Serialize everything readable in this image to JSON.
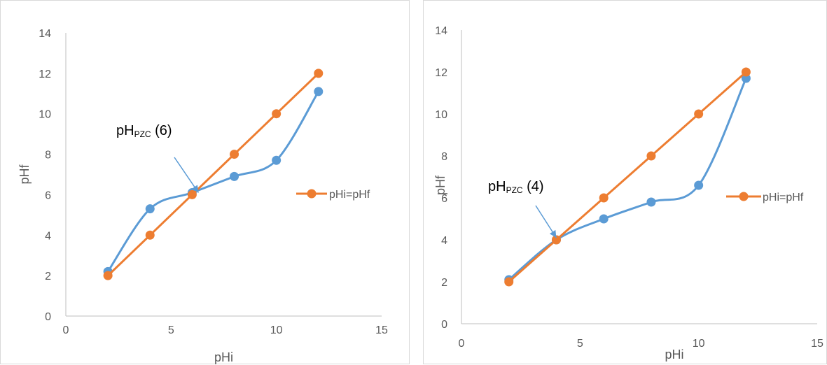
{
  "colors": {
    "measured": "#5b9bd5",
    "reference": "#ed7d31",
    "axis": "#bfbfbf",
    "text": "#595959"
  },
  "chart_data": [
    {
      "type": "line",
      "xlabel": "pHi",
      "ylabel": "pHf",
      "xlim": [
        0,
        15
      ],
      "ylim": [
        0,
        14
      ],
      "xticks": [
        "0",
        "5",
        "10",
        "15"
      ],
      "yticks": [
        "0",
        "2",
        "4",
        "6",
        "8",
        "10",
        "12",
        "14"
      ],
      "grid": false,
      "legend_position": "right",
      "series": [
        {
          "x": [
            2,
            4,
            6,
            8,
            10,
            12
          ],
          "y": [
            2.2,
            5.3,
            6.1,
            6.9,
            7.7,
            11.1
          ],
          "color": "#5b9bd5",
          "style": "smooth"
        },
        {
          "name": "pHi=pHf",
          "x": [
            2,
            4,
            6,
            8,
            10,
            12
          ],
          "y": [
            2,
            4,
            6,
            8,
            10,
            12
          ],
          "color": "#ed7d31",
          "style": "straight"
        }
      ],
      "annotation": {
        "main": "pH",
        "sub": "PZC",
        "suffix": " (6)",
        "arrow_to": [
          6.3,
          6.1
        ]
      }
    },
    {
      "type": "line",
      "xlabel": "pHi",
      "ylabel": "pHf",
      "xlim": [
        0,
        15
      ],
      "ylim": [
        0,
        14
      ],
      "xticks": [
        "0",
        "5",
        "10",
        "15"
      ],
      "yticks": [
        "0",
        "2",
        "4",
        "6",
        "8",
        "10",
        "12",
        "14"
      ],
      "grid": false,
      "legend_position": "right",
      "series": [
        {
          "x": [
            2,
            4,
            6,
            8,
            10,
            12
          ],
          "y": [
            2.1,
            4,
            5,
            5.8,
            6.6,
            11.7
          ],
          "color": "#5b9bd5",
          "style": "smooth"
        },
        {
          "name": "pHi=pHf",
          "x": [
            2,
            4,
            6,
            8,
            10,
            12
          ],
          "y": [
            2,
            4,
            6,
            8,
            10,
            12
          ],
          "color": "#ed7d31",
          "style": "straight"
        }
      ],
      "annotation": {
        "main": "pH",
        "sub": "PZC",
        "suffix": " (4)",
        "arrow_to": [
          4.0,
          4.1
        ]
      }
    }
  ]
}
